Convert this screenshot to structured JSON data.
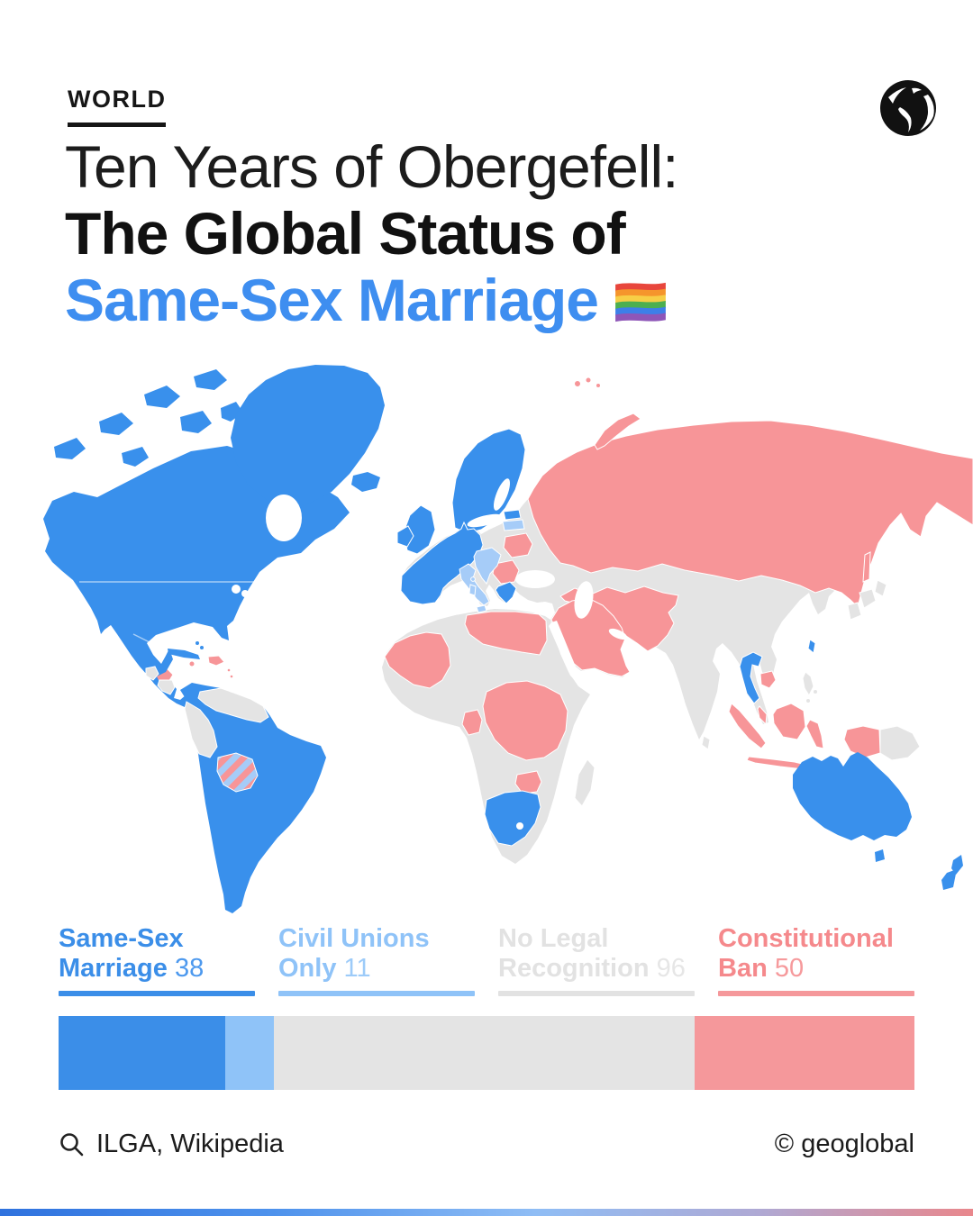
{
  "header": {
    "kicker": "WORLD",
    "title_line1": "Ten Years of Obergefell:",
    "title_line2": "The Global Status of",
    "title_line3": "Same-Sex Marriage",
    "title_accent_color": "#3E8EF0"
  },
  "chart_data": {
    "type": "bar",
    "title": "Ten Years of Obergefell: The Global Status of Same-Sex Marriage",
    "categories": [
      "Same-Sex Marriage",
      "Civil Unions Only",
      "No Legal Recognition",
      "Constitutional Ban"
    ],
    "values": [
      38,
      11,
      96,
      50
    ],
    "colors": [
      "#3B8EE8",
      "#8FC3F8",
      "#E4E4E4",
      "#F5989B"
    ],
    "note": "Choropleth world map plus proportional stacked bar of country counts",
    "legend_position": "below-map"
  },
  "legend": {
    "items": [
      {
        "line1": "Same-Sex",
        "line2": "Marriage",
        "count": "38",
        "text_color": "#3B8EE8",
        "count_color": "#4D99EE",
        "bar_color": "#3B8EE8"
      },
      {
        "line1": "Civil Unions",
        "line2": "Only",
        "count": "11",
        "text_color": "#8FC3F8",
        "count_color": "#9DCBF9",
        "bar_color": "#8FC3F8"
      },
      {
        "line1": "No Legal",
        "line2": "Recognition",
        "count": "96",
        "text_color": "#E2E2E2",
        "count_color": "#E6E6E6",
        "bar_color": "#E2E2E2"
      },
      {
        "line1": "Constitutional",
        "line2": "Ban",
        "count": "50",
        "text_color": "#F5898C",
        "count_color": "#F69A9C",
        "bar_color": "#F5989B"
      }
    ]
  },
  "stacked_bar": {
    "segments": [
      {
        "label": "Same-Sex Marriage",
        "count": 38,
        "color": "#3B8EE8"
      },
      {
        "label": "Civil Unions Only",
        "count": 11,
        "color": "#8FC3F8"
      },
      {
        "label": "No Legal Recognition",
        "count": 96,
        "color": "#E4E4E4"
      },
      {
        "label": "Constitutional Ban",
        "count": 50,
        "color": "#F5989B"
      }
    ]
  },
  "map": {
    "status_colors": {
      "marriage": "#3990EC",
      "civil": "#A6CCF8",
      "none": "#E4E4E4",
      "ban": "#F79598",
      "mixed": "url(#bolivia-stripes)"
    },
    "regions": {
      "north-america": "marriage",
      "canadian-arctic": "marriage",
      "greenland": "marriage",
      "iceland": "marriage",
      "cuba": "marriage",
      "bahamas": "marriage",
      "hispaniola": "ban",
      "jamaica": "ban",
      "antilles": "ban",
      "honduras": "ban",
      "guatemala": "none",
      "nicaragua": "none",
      "south-america": "marriage",
      "venezuela-guyanas": "none",
      "peru": "none",
      "bolivia": "mixed",
      "paraguay": "ban",
      "afro-eurasia": "none",
      "scandinavia": "marriage",
      "uk": "marriage",
      "ireland": "marriage",
      "western-europe": "marriage",
      "estonia": "marriage",
      "greece": "marriage",
      "latvia": "civil",
      "italy": "civil",
      "central-europe": "civil",
      "belarus": "ban",
      "romania": "ban",
      "russia": "ban",
      "sakhalin": "ban",
      "svalbard": "ban",
      "novaya-zemlya": "ban",
      "central-asia": "ban",
      "arabia": "ban",
      "nw-africa": "ban",
      "libya-egypt": "ban",
      "cameroon-gabon": "ban",
      "central-east-africa": "ban",
      "zimbabwe": "ban",
      "south-africa": "marriage",
      "madagascar": "none",
      "thailand": "marriage",
      "cambodia": "ban",
      "malaysia": "ban",
      "sumatra": "ban",
      "java": "ban",
      "borneo": "ban",
      "sulawesi": "ban",
      "lesser-sunda": "ban",
      "west-papua": "ban",
      "new-guinea": "none",
      "philippines": "none",
      "japan": "none",
      "sri-lanka": "none",
      "taiwan": "marriage",
      "australia": "marriage",
      "tasmania": "marriage",
      "new-zealand": "marriage"
    }
  },
  "footer": {
    "source": "ILGA, Wikipedia",
    "credit": "© geoglobal"
  },
  "gradient_bar_colors": [
    "#2F72DE",
    "#4E92EC",
    "#8FBDF5",
    "#AFA9D4",
    "#E9878C"
  ]
}
